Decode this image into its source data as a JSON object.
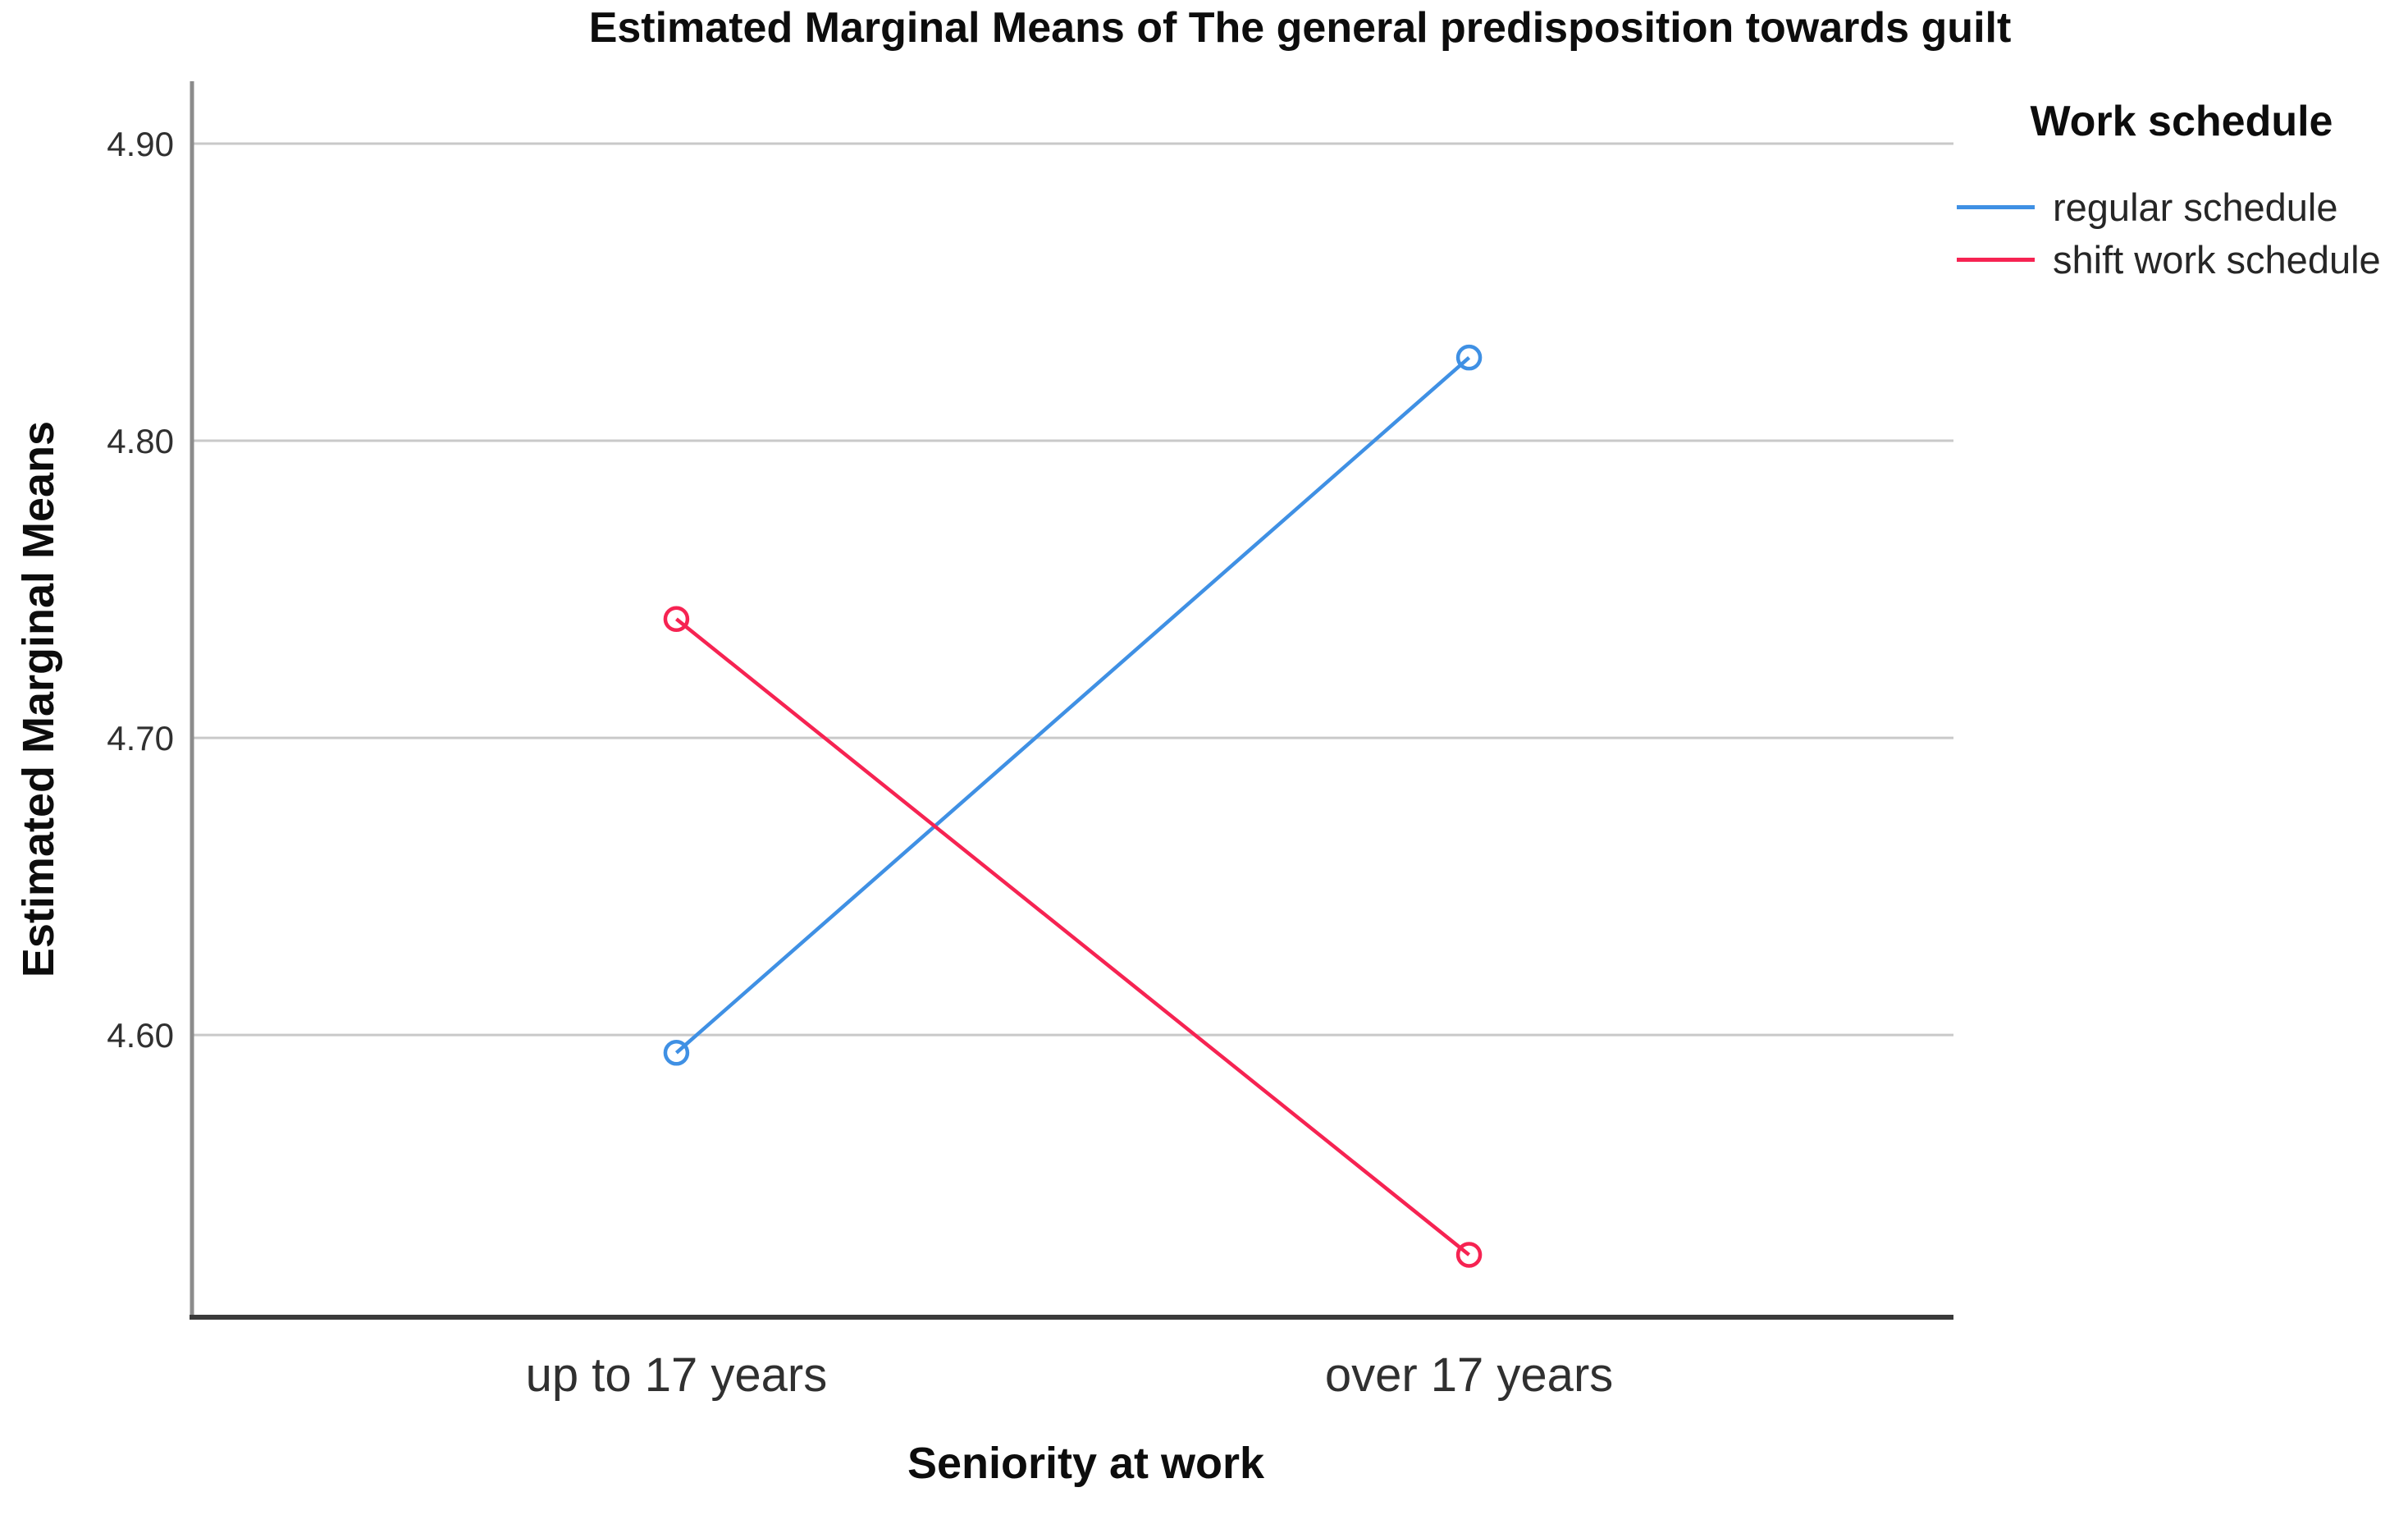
{
  "chart_data": {
    "type": "line",
    "title": "Estimated Marginal Means of The general predisposition towards guilt",
    "xlabel": "Seniority at work",
    "ylabel": "Estimated Marginal Means",
    "categories": [
      "up to 17 years",
      "over 17 years"
    ],
    "series": [
      {
        "name": "regular schedule",
        "color": "#3F90E4",
        "values": [
          4.594,
          4.828
        ]
      },
      {
        "name": "shift work schedule",
        "color": "#F62352",
        "values": [
          4.74,
          4.526
        ]
      }
    ],
    "ytick_values": [
      4.9,
      4.8,
      4.7,
      4.6
    ],
    "ytick_labels": [
      "4.90",
      "4.80",
      "4.70",
      "4.60"
    ],
    "ylim": [
      4.505,
      4.921
    ],
    "grid": "horizontal",
    "legend": {
      "title": "Work schedule",
      "position": "top-right"
    },
    "marker": "open-circle",
    "colors": {
      "gridline": "#C9C9C9",
      "y_axis_line": "#8C8C8C",
      "x_axis_line": "#3A3A3A",
      "tick_label": "#303030",
      "category_label": "#303030"
    }
  }
}
